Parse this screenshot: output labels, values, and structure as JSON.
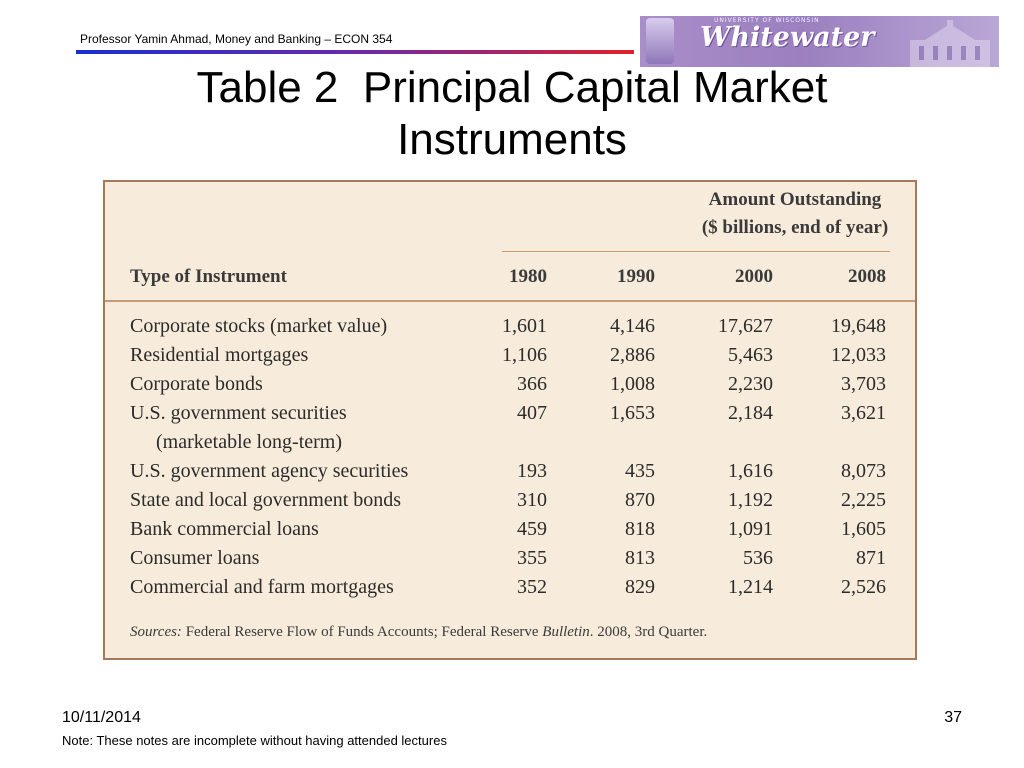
{
  "header": {
    "course_text": "Professor Yamin Ahmad, Money and Banking – ECON 354",
    "logo": {
      "university_text": "UNIVERSITY OF WISCONSIN",
      "wordmark": "Whitewater"
    }
  },
  "slide": {
    "title_line1": "Table 2  Principal Capital Market",
    "title_line2": "Instruments"
  },
  "table": {
    "amount_header_line1": "Amount Outstanding",
    "amount_header_line2": "($ billions, end of year)",
    "column_headers": [
      "Type of Instrument",
      "1980",
      "1990",
      "2000",
      "2008"
    ],
    "rows": [
      {
        "type": "Corporate stocks (market value)",
        "values": [
          "1,601",
          "4,146",
          "17,627",
          "19,648"
        ]
      },
      {
        "type": "Residential mortgages",
        "values": [
          "1,106",
          "2,886",
          "5,463",
          "12,033"
        ]
      },
      {
        "type": "Corporate bonds",
        "values": [
          "366",
          "1,008",
          "2,230",
          "3,703"
        ]
      },
      {
        "type": "U.S. government securities",
        "type_cont": "(marketable long-term)",
        "values": [
          "407",
          "1,653",
          "2,184",
          "3,621"
        ]
      },
      {
        "type": "U.S. government agency securities",
        "values": [
          "193",
          "435",
          "1,616",
          "8,073"
        ]
      },
      {
        "type": "State and local government bonds",
        "values": [
          "310",
          "870",
          "1,192",
          "2,225"
        ]
      },
      {
        "type": "Bank commercial loans",
        "values": [
          "459",
          "818",
          "1,091",
          "1,605"
        ]
      },
      {
        "type": "Consumer loans",
        "values": [
          "355",
          "813",
          "536",
          "871"
        ]
      },
      {
        "type": "Commercial and farm mortgages",
        "values": [
          "352",
          "829",
          "1,214",
          "2,526"
        ]
      }
    ],
    "sources_label": "Sources:",
    "sources_text_a": "Federal Reserve Flow of Funds Accounts; Federal Reserve",
    "sources_italic": "Bulletin",
    "sources_text_b": ". 2008, 3rd Quarter."
  },
  "footer": {
    "date": "10/11/2014",
    "page_number": "37",
    "note": "Note: These notes are incomplete without having attended lectures"
  },
  "colors": {
    "table_background": "#f7ecdb",
    "table_border": "#a8785a",
    "rule": "#c59a78",
    "logo_purple": "#9b7fbf"
  }
}
